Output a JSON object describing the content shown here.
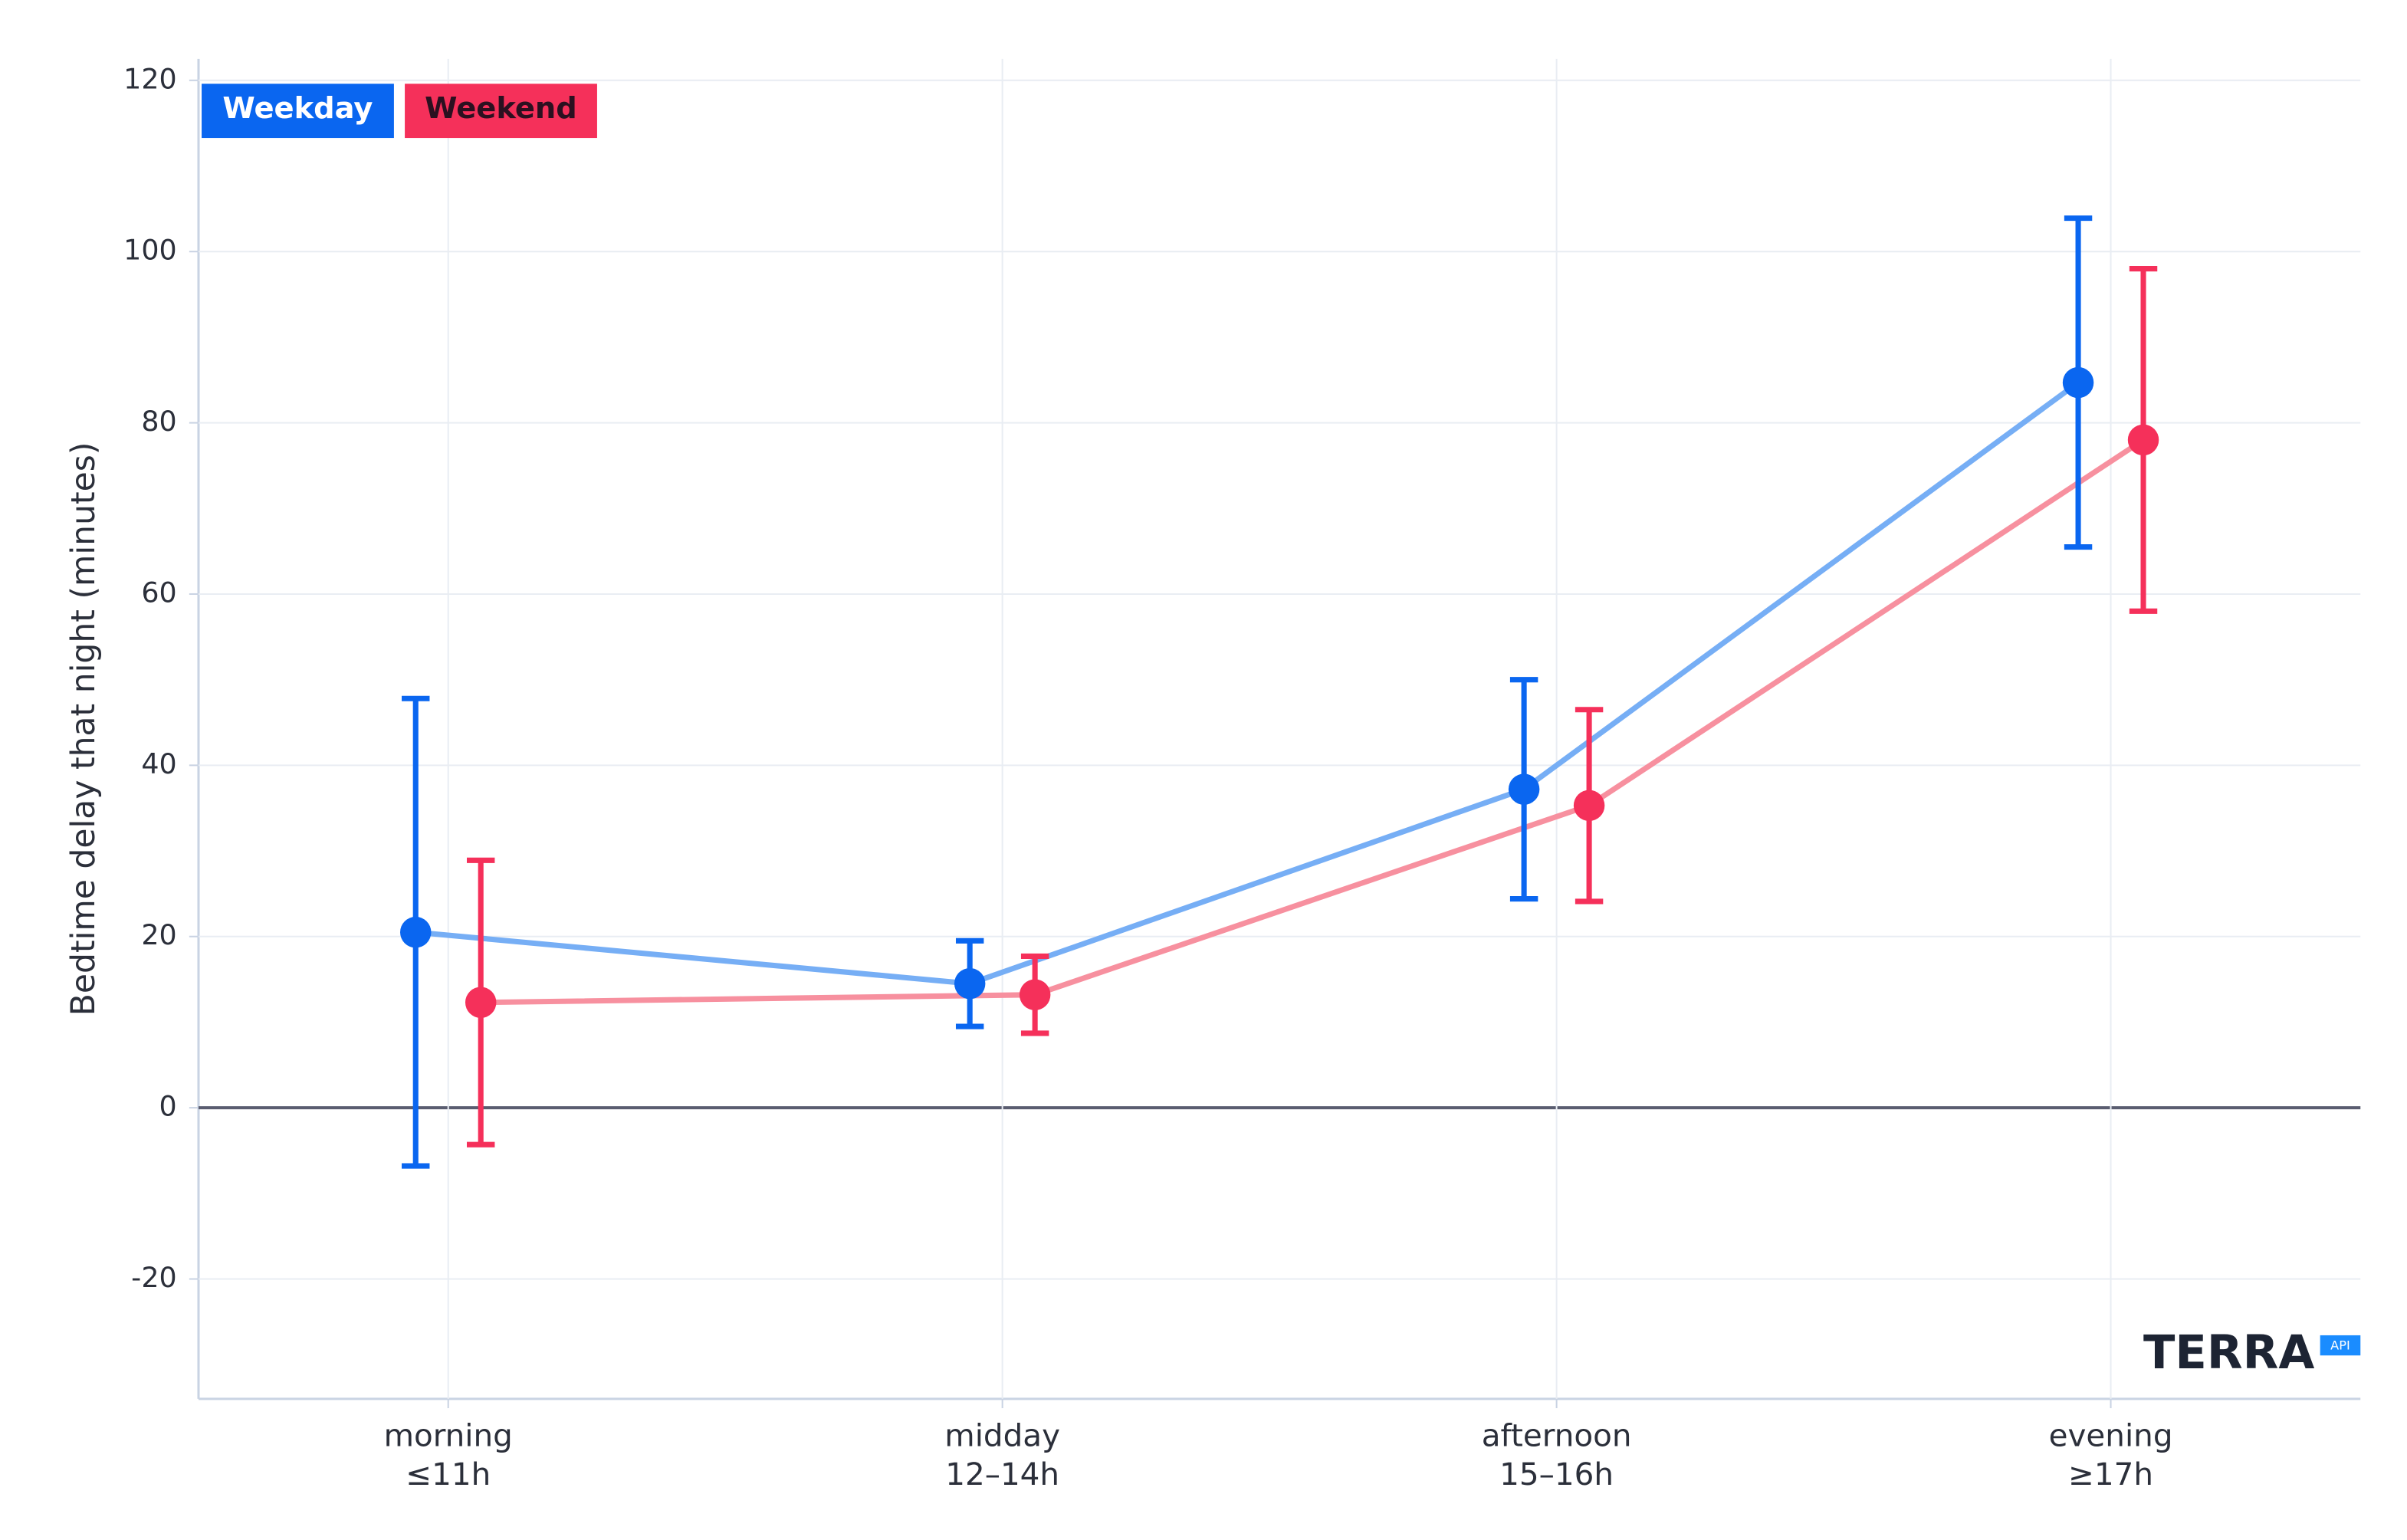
{
  "chart_data": {
    "type": "line",
    "y_label": "Bedtime delay that night (minutes)",
    "categories": [
      [
        "morning",
        "≤11h"
      ],
      [
        "midday",
        "12–14h"
      ],
      [
        "afternoon",
        "15–16h"
      ],
      [
        "evening",
        "≥17h"
      ]
    ],
    "series": [
      {
        "name": "Weekday",
        "color": "#0a66f0",
        "line_color": "#76aef5",
        "values": [
          20.5,
          14.5,
          37.2,
          84.7
        ],
        "errors": [
          27.3,
          5,
          12.8,
          19.2
        ]
      },
      {
        "name": "Weekend",
        "color": "#f5305a",
        "line_color": "#f7909f",
        "values": [
          12.3,
          13.2,
          35.3,
          78
        ],
        "errors": [
          16.6,
          4.5,
          11.2,
          20
        ]
      }
    ],
    "ylim": [
      -34,
      122.5
    ],
    "yticks": [
      -20,
      0,
      20,
      40,
      60,
      80,
      100,
      120
    ],
    "grid": true,
    "legend": "top-left",
    "logo": {
      "text": "TERRA",
      "badge": "API"
    }
  }
}
